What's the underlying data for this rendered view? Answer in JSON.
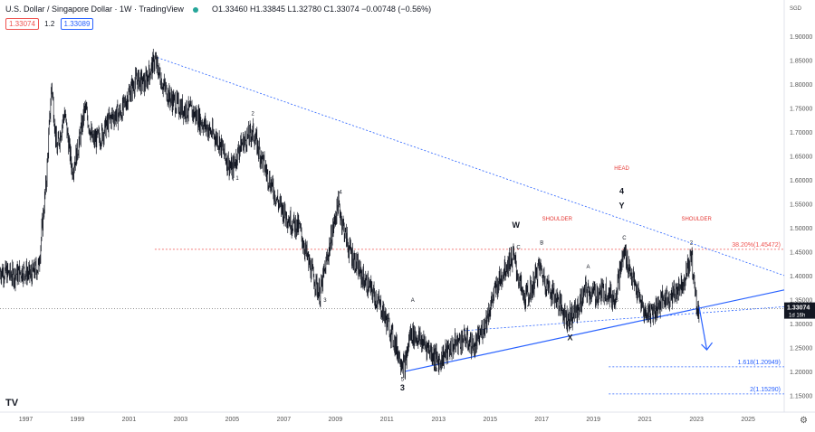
{
  "header": {
    "symbol": "U.S. Dollar / Singapore Dollar · 1W · TradingView",
    "ohlc": "O1.33460 H1.33845 L1.32780 C1.33074 −0.00748 (−0.56%)",
    "bid": "1.33074",
    "spread": "1.2",
    "ask": "1.33089"
  },
  "colors": {
    "candle": "#131722",
    "trendline": "#2962ff",
    "fib_line": "#ef5350",
    "annotation_red": "#e53935",
    "price_label_bg": "#131722",
    "axis_text": "#555555"
  },
  "icons": [
    "tradingview-logo",
    "gear-icon",
    "zoom-icon",
    "flag-icon"
  ],
  "tv_logo": "TV",
  "chart_data": {
    "type": "candlestick",
    "x_label_year_range": [
      1997,
      2025
    ],
    "xlim": [
      1996.0,
      2026.4
    ],
    "ylim": [
      1.115,
      1.975
    ],
    "y_ticks": [
      1.15,
      1.2,
      1.25,
      1.3,
      1.35,
      1.4,
      1.45,
      1.5,
      1.55,
      1.6,
      1.65,
      1.7,
      1.75,
      1.8,
      1.85,
      1.9
    ],
    "y_tick_labels": [
      "1.15000",
      "1.20000",
      "1.25000",
      "1.30000",
      "1.35000",
      "1.40000",
      "1.45000",
      "1.50000",
      "1.55000",
      "1.60000",
      "1.65000",
      "1.70000",
      "1.75000",
      "1.80000",
      "1.85000",
      "1.90000"
    ],
    "currency_label": "SGD",
    "x_ticks": [
      1997,
      1999,
      2001,
      2003,
      2005,
      2007,
      2009,
      2011,
      2013,
      2015,
      2017,
      2019,
      2021,
      2023,
      2025
    ],
    "x_tick_labels": [
      "1997",
      "1999",
      "2001",
      "2003",
      "2005",
      "2007",
      "2009",
      "2011",
      "2013",
      "2015",
      "2017",
      "2019",
      "2021",
      "2023",
      "2025"
    ],
    "price_path": [
      [
        1996.0,
        1.41
      ],
      [
        1996.5,
        1.4
      ],
      [
        1996.9,
        1.41
      ],
      [
        1997.2,
        1.4
      ],
      [
        1997.5,
        1.42
      ],
      [
        1997.8,
        1.6
      ],
      [
        1998.0,
        1.8
      ],
      [
        1998.2,
        1.66
      ],
      [
        1998.5,
        1.74
      ],
      [
        1998.8,
        1.62
      ],
      [
        1999.0,
        1.66
      ],
      [
        1999.3,
        1.75
      ],
      [
        1999.6,
        1.68
      ],
      [
        1999.9,
        1.69
      ],
      [
        2000.3,
        1.73
      ],
      [
        2000.7,
        1.74
      ],
      [
        2001.0,
        1.78
      ],
      [
        2001.3,
        1.81
      ],
      [
        2001.6,
        1.8
      ],
      [
        2002.0,
        1.85
      ],
      [
        2002.3,
        1.8
      ],
      [
        2002.6,
        1.77
      ],
      [
        2003.0,
        1.75
      ],
      [
        2003.5,
        1.74
      ],
      [
        2004.0,
        1.71
      ],
      [
        2004.5,
        1.68
      ],
      [
        2004.8,
        1.64
      ],
      [
        2005.0,
        1.62
      ],
      [
        2005.3,
        1.67
      ],
      [
        2005.8,
        1.7
      ],
      [
        2006.3,
        1.62
      ],
      [
        2006.8,
        1.55
      ],
      [
        2007.3,
        1.51
      ],
      [
        2007.6,
        1.5
      ],
      [
        2008.0,
        1.42
      ],
      [
        2008.4,
        1.36
      ],
      [
        2008.7,
        1.44
      ],
      [
        2009.1,
        1.55
      ],
      [
        2009.5,
        1.46
      ],
      [
        2010.0,
        1.4
      ],
      [
        2010.5,
        1.36
      ],
      [
        2010.8,
        1.33
      ],
      [
        2011.1,
        1.29
      ],
      [
        2011.5,
        1.23
      ],
      [
        2011.7,
        1.21
      ],
      [
        2011.9,
        1.28
      ],
      [
        2012.2,
        1.27
      ],
      [
        2012.6,
        1.25
      ],
      [
        2013.0,
        1.22
      ],
      [
        2013.3,
        1.24
      ],
      [
        2013.7,
        1.26
      ],
      [
        2014.0,
        1.27
      ],
      [
        2014.4,
        1.25
      ],
      [
        2014.8,
        1.3
      ],
      [
        2015.2,
        1.37
      ],
      [
        2015.6,
        1.42
      ],
      [
        2015.9,
        1.44
      ],
      [
        2016.3,
        1.35
      ],
      [
        2016.6,
        1.37
      ],
      [
        2016.9,
        1.42
      ],
      [
        2017.2,
        1.38
      ],
      [
        2017.6,
        1.35
      ],
      [
        2018.0,
        1.31
      ],
      [
        2018.4,
        1.33
      ],
      [
        2018.7,
        1.37
      ],
      [
        2019.1,
        1.36
      ],
      [
        2019.5,
        1.37
      ],
      [
        2019.8,
        1.35
      ],
      [
        2020.2,
        1.45
      ],
      [
        2020.6,
        1.38
      ],
      [
        2021.0,
        1.32
      ],
      [
        2021.4,
        1.33
      ],
      [
        2021.7,
        1.35
      ],
      [
        2022.1,
        1.36
      ],
      [
        2022.5,
        1.39
      ],
      [
        2022.8,
        1.44
      ],
      [
        2023.0,
        1.34
      ],
      [
        2023.1,
        1.33
      ]
    ],
    "current_price": 1.33074,
    "current_price_label": "1.33074",
    "current_price_sublabel": "1d 16h",
    "fib_levels": [
      {
        "label": "38.20%(1.45472)",
        "value": 1.45472
      },
      {
        "label": "1.618(1.20949)",
        "value": 1.20949
      },
      {
        "label": "2(1.15290)",
        "value": 1.1529
      }
    ],
    "trendlines": [
      {
        "name": "upper-resistance",
        "points": [
          [
            2002.1,
            1.855
          ],
          [
            2026.4,
            1.4
          ]
        ]
      },
      {
        "name": "lower-support",
        "points": [
          [
            2011.7,
            1.2
          ],
          [
            2026.4,
            1.37
          ]
        ]
      },
      {
        "name": "inner-support",
        "points": [
          [
            2014.0,
            1.285
          ],
          [
            2026.4,
            1.335
          ]
        ]
      }
    ],
    "wave_labels": [
      {
        "text": "1",
        "x": 2005.2,
        "y": 1.6,
        "size": "small"
      },
      {
        "text": "2",
        "x": 2005.8,
        "y": 1.735,
        "size": "small"
      },
      {
        "text": "3",
        "x": 2008.6,
        "y": 1.345,
        "size": "small"
      },
      {
        "text": "4",
        "x": 2009.2,
        "y": 1.57,
        "size": "small"
      },
      {
        "text": "5",
        "x": 2011.6,
        "y": 1.18,
        "size": "small"
      },
      {
        "text": "3",
        "x": 2011.6,
        "y": 1.16,
        "size": "large"
      },
      {
        "text": "A",
        "x": 2012.0,
        "y": 1.345,
        "size": "small"
      },
      {
        "text": "B",
        "x": 2012.9,
        "y": 1.2,
        "size": "small"
      },
      {
        "text": "W",
        "x": 2016.0,
        "y": 1.5,
        "size": "large"
      },
      {
        "text": "SHOULDER",
        "x": 2017.6,
        "y": 1.515,
        "size": "red"
      },
      {
        "text": "C",
        "x": 2016.1,
        "y": 1.455,
        "size": "small"
      },
      {
        "text": "A",
        "x": 2016.5,
        "y": 1.335,
        "size": "small"
      },
      {
        "text": "B",
        "x": 2017.0,
        "y": 1.465,
        "size": "small"
      },
      {
        "text": "C",
        "x": 2018.1,
        "y": 1.29,
        "size": "small"
      },
      {
        "text": "X",
        "x": 2018.1,
        "y": 1.265,
        "size": "large"
      },
      {
        "text": "A",
        "x": 2018.8,
        "y": 1.415,
        "size": "small"
      },
      {
        "text": "B",
        "x": 2019.9,
        "y": 1.345,
        "size": "small"
      },
      {
        "text": "HEAD",
        "x": 2020.1,
        "y": 1.62,
        "size": "red"
      },
      {
        "text": "4",
        "x": 2020.1,
        "y": 1.57,
        "size": "large"
      },
      {
        "text": "Y",
        "x": 2020.1,
        "y": 1.54,
        "size": "large"
      },
      {
        "text": "C",
        "x": 2020.2,
        "y": 1.475,
        "size": "small"
      },
      {
        "text": "1",
        "x": 2021.1,
        "y": 1.315,
        "size": "small"
      },
      {
        "text": "SHOULDER",
        "x": 2023.0,
        "y": 1.515,
        "size": "red"
      },
      {
        "text": "2",
        "x": 2022.8,
        "y": 1.465,
        "size": "small"
      }
    ],
    "forecast_arrow": {
      "from": [
        2023.1,
        1.335
      ],
      "to": [
        2023.4,
        1.245
      ]
    },
    "vertical_marker": {
      "x": 2023.0
    },
    "dotted_price_line": 1.33074
  }
}
